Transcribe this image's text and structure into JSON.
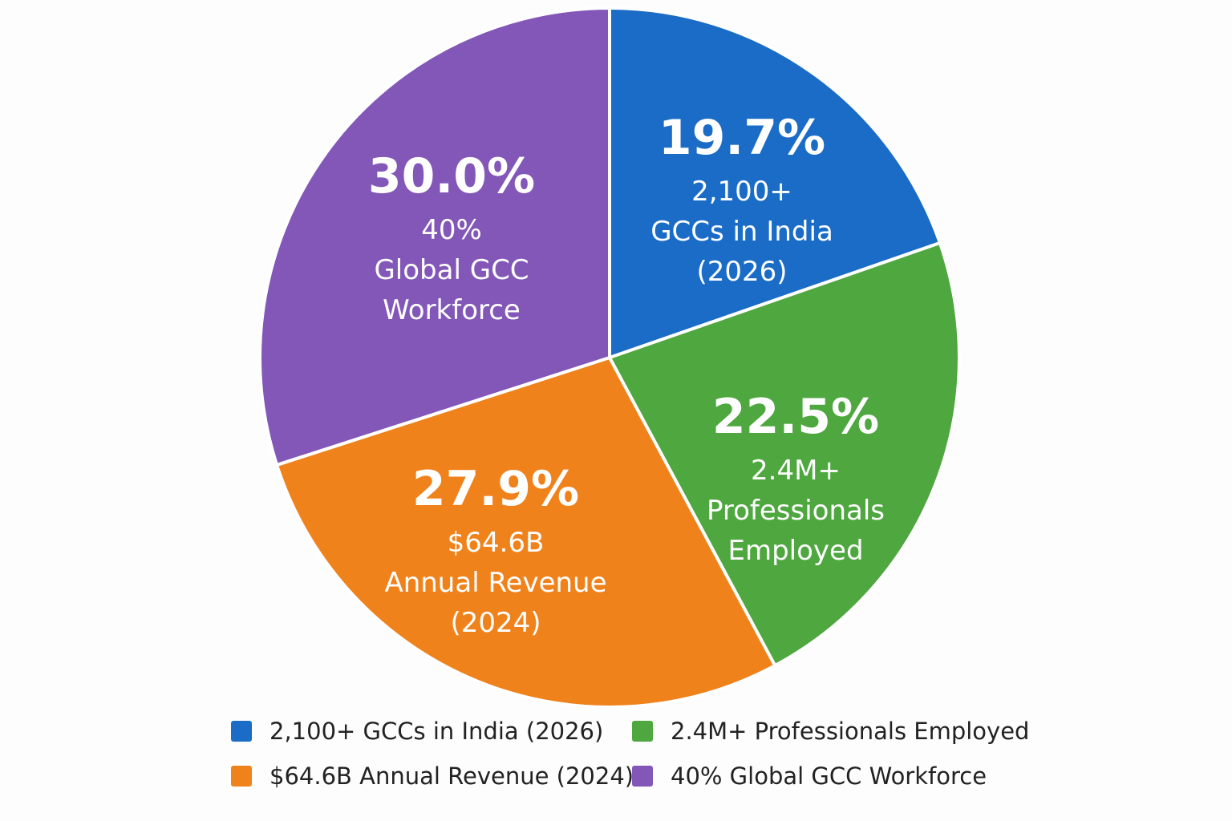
{
  "chart_data": {
    "type": "pie",
    "slices": [
      {
        "percent_label": "19.7%",
        "value": 19.7,
        "lines": [
          "2,100+",
          "GCCs in India",
          "(2026)"
        ],
        "legend": "2,100+ GCCs in India (2026)",
        "color": "#1a6cc6"
      },
      {
        "percent_label": "22.5%",
        "value": 22.5,
        "lines": [
          "2.4M+",
          "Professionals",
          "Employed"
        ],
        "legend": "2.4M+ Professionals Employed",
        "color": "#4ea73f"
      },
      {
        "percent_label": "27.9%",
        "value": 27.9,
        "lines": [
          "$64.6B",
          "Annual Revenue",
          "(2024)"
        ],
        "legend": "$64.6B Annual Revenue (2024)",
        "color": "#f0821c"
      },
      {
        "percent_label": "30.0%",
        "value": 30.0,
        "lines": [
          "40%",
          "Global GCC",
          "Workforce"
        ],
        "legend": "40% Global GCC Workforce",
        "color": "#8257b8"
      }
    ],
    "start": "12 o'clock",
    "direction": "clockwise",
    "legend_position": "bottom"
  }
}
